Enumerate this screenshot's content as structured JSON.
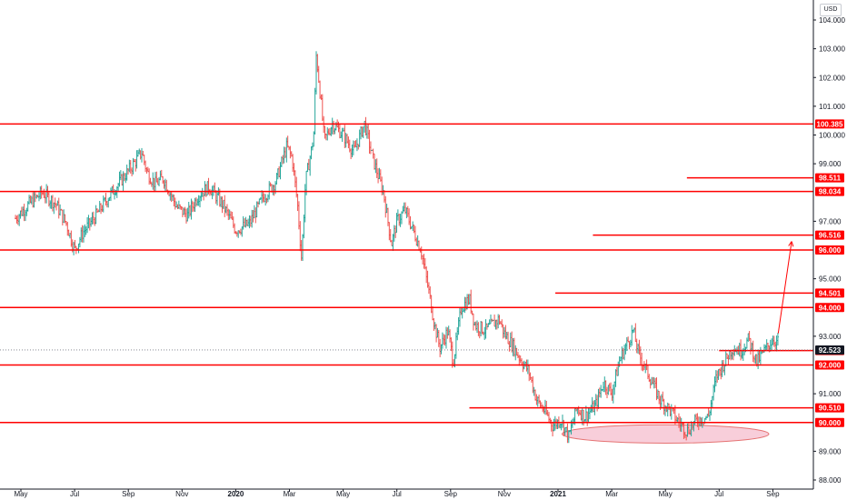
{
  "currency": "USD",
  "chart_data": {
    "type": "candlestick",
    "ylim": [
      87.8,
      104.6
    ],
    "ytick_labels": [
      "104.000",
      "103.000",
      "102.000",
      "101.000",
      "100.000",
      "99.000",
      "97.000",
      "95.000",
      "93.000",
      "91.000",
      "89.000",
      "88.000"
    ],
    "yticks": [
      104,
      103,
      102,
      101,
      100,
      99,
      97,
      95,
      93,
      91,
      89,
      88
    ],
    "xtick_labels": [
      "May",
      "Jul",
      "Sep",
      "Nov",
      "2020",
      "Mar",
      "May",
      "Jul",
      "Sep",
      "Nov",
      "2021",
      "Mar",
      "May",
      "Jul",
      "Sep"
    ],
    "xticks_months": [
      0,
      2,
      4,
      6,
      8,
      10,
      12,
      14,
      16,
      18,
      20,
      22,
      24,
      26,
      28
    ],
    "bold_xticks": [
      "2020",
      "2021"
    ],
    "month_origin_note": "",
    "price_path": [
      [
        -0.2,
        97.1
      ],
      [
        0.3,
        97.6
      ],
      [
        0.8,
        98.0
      ],
      [
        1.3,
        97.6
      ],
      [
        1.7,
        96.9
      ],
      [
        2.0,
        96.0
      ],
      [
        2.3,
        96.6
      ],
      [
        2.8,
        97.2
      ],
      [
        3.3,
        97.9
      ],
      [
        3.8,
        98.5
      ],
      [
        4.2,
        99.0
      ],
      [
        4.5,
        99.4
      ],
      [
        4.7,
        98.7
      ],
      [
        5.0,
        98.3
      ],
      [
        5.3,
        98.5
      ],
      [
        5.8,
        97.5
      ],
      [
        6.2,
        97.2
      ],
      [
        6.6,
        97.9
      ],
      [
        7.0,
        98.2
      ],
      [
        7.5,
        97.6
      ],
      [
        8.0,
        96.7
      ],
      [
        8.5,
        96.9
      ],
      [
        9.0,
        97.8
      ],
      [
        9.5,
        98.4
      ],
      [
        9.9,
        99.6
      ],
      [
        10.1,
        99.2
      ],
      [
        10.3,
        97.6
      ],
      [
        10.45,
        95.7
      ],
      [
        10.6,
        98.4
      ],
      [
        10.9,
        99.9
      ],
      [
        11.0,
        102.8
      ],
      [
        11.15,
        101.4
      ],
      [
        11.3,
        99.8
      ],
      [
        11.6,
        100.4
      ],
      [
        12.0,
        100.0
      ],
      [
        12.4,
        99.4
      ],
      [
        12.8,
        100.4
      ],
      [
        13.1,
        99.2
      ],
      [
        13.5,
        98.0
      ],
      [
        13.8,
        96.2
      ],
      [
        14.0,
        97.0
      ],
      [
        14.3,
        97.4
      ],
      [
        14.6,
        96.7
      ],
      [
        14.9,
        96.0
      ],
      [
        15.2,
        94.5
      ],
      [
        15.4,
        93.4
      ],
      [
        15.6,
        92.6
      ],
      [
        15.9,
        93.2
      ],
      [
        16.1,
        92.1
      ],
      [
        16.4,
        94.0
      ],
      [
        16.7,
        94.3
      ],
      [
        16.9,
        93.4
      ],
      [
        17.3,
        93.2
      ],
      [
        17.8,
        93.6
      ],
      [
        18.0,
        93.1
      ],
      [
        18.3,
        92.7
      ],
      [
        18.6,
        92.2
      ],
      [
        18.9,
        91.8
      ],
      [
        19.2,
        90.8
      ],
      [
        19.5,
        90.4
      ],
      [
        19.8,
        89.9
      ],
      [
        20.1,
        90.1
      ],
      [
        20.4,
        89.5
      ],
      [
        20.7,
        90.5
      ],
      [
        21.0,
        90.2
      ],
      [
        21.4,
        90.6
      ],
      [
        21.7,
        91.4
      ],
      [
        22.0,
        91.0
      ],
      [
        22.3,
        92.2
      ],
      [
        22.6,
        92.8
      ],
      [
        22.8,
        93.2
      ],
      [
        23.0,
        92.4
      ],
      [
        23.4,
        91.6
      ],
      [
        23.8,
        90.8
      ],
      [
        24.2,
        90.4
      ],
      [
        24.5,
        90.0
      ],
      [
        24.8,
        89.7
      ],
      [
        25.2,
        90.1
      ],
      [
        25.6,
        90.2
      ],
      [
        25.9,
        91.6
      ],
      [
        26.2,
        92.1
      ],
      [
        26.5,
        92.6
      ],
      [
        26.8,
        92.5
      ],
      [
        27.1,
        92.9
      ],
      [
        27.4,
        92.1
      ],
      [
        27.7,
        92.5
      ],
      [
        28.0,
        92.9
      ],
      [
        28.2,
        92.8
      ]
    ],
    "levels": [
      {
        "value": 100.385,
        "label": "100.385",
        "from": -1
      },
      {
        "value": 98.511,
        "label": "98.511",
        "from": 24.8
      },
      {
        "value": 98.034,
        "label": "98.034",
        "from": -1
      },
      {
        "value": 96.516,
        "label": "96.516",
        "from": 21.3
      },
      {
        "value": 96.0,
        "label": "96.000",
        "from": -1
      },
      {
        "value": 94.501,
        "label": "94.501",
        "from": 19.9
      },
      {
        "value": 94.0,
        "label": "94.000",
        "from": -1
      },
      {
        "value": 92.503,
        "label": "92.503",
        "from": 26.0
      },
      {
        "value": 92.0,
        "label": "92.000",
        "from": -1
      },
      {
        "value": 90.51,
        "label": "90.510",
        "from": 16.7
      },
      {
        "value": 90.0,
        "label": "90.000",
        "from": -1
      }
    ],
    "last_price": {
      "value": 92.523,
      "label": "92.523"
    },
    "arrow": {
      "from": [
        28.2,
        93.1
      ],
      "to": [
        28.7,
        96.3
      ]
    },
    "ellipse": {
      "cx": 24.0,
      "cy": 89.6,
      "rx": 3.85,
      "ry": 0.32
    },
    "colors": {
      "level": "#ff0000",
      "up": "#26a69a",
      "down": "#ef5350",
      "ellipse_fill": "#f7c6d4",
      "ellipse_stroke": "#e57373",
      "axis_line": "#131722",
      "last_dot": "#787b86",
      "label_text": "#ffffff"
    }
  }
}
